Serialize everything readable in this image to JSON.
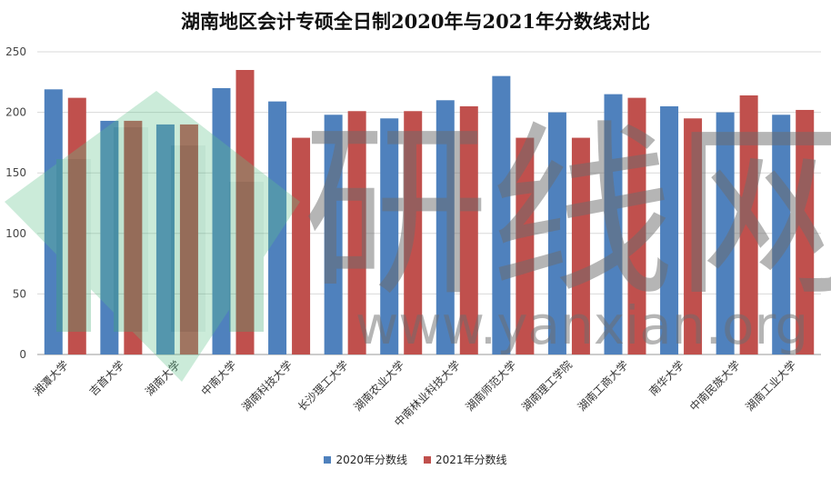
{
  "chart_data": {
    "type": "bar",
    "title": "湖南地区会计专硕全日制2020年与2021年分数线对比",
    "xlabel": "",
    "ylabel": "",
    "ylim": [
      0,
      250
    ],
    "yticks": [
      0,
      50,
      100,
      150,
      200,
      250
    ],
    "grid": true,
    "legend_position": "bottom",
    "categories": [
      "湘潭大学",
      "吉首大学",
      "湖南大学",
      "中南大学",
      "湖南科技大学",
      "长沙理工大学",
      "湖南农业大学",
      "中南林业科技大学",
      "湖南师范大学",
      "湖南理工学院",
      "湖南工商大学",
      "南华大学",
      "中南民族大学",
      "湖南工业大学"
    ],
    "series": [
      {
        "name": "2020年分数线",
        "color": "#4f81bd",
        "values": [
          219,
          193,
          190,
          220,
          209,
          198,
          195,
          210,
          230,
          200,
          215,
          205,
          200,
          198
        ]
      },
      {
        "name": "2021年分数线",
        "color": "#c0504d",
        "values": [
          212,
          193,
          190,
          235,
          179,
          201,
          201,
          205,
          179,
          179,
          212,
          195,
          214,
          202
        ]
      }
    ]
  },
  "watermark": {
    "main_text": "研线网",
    "url_text": "www.yanxian.org",
    "logo_color": "#5ec08a",
    "text_color": "#6d6d6d"
  }
}
